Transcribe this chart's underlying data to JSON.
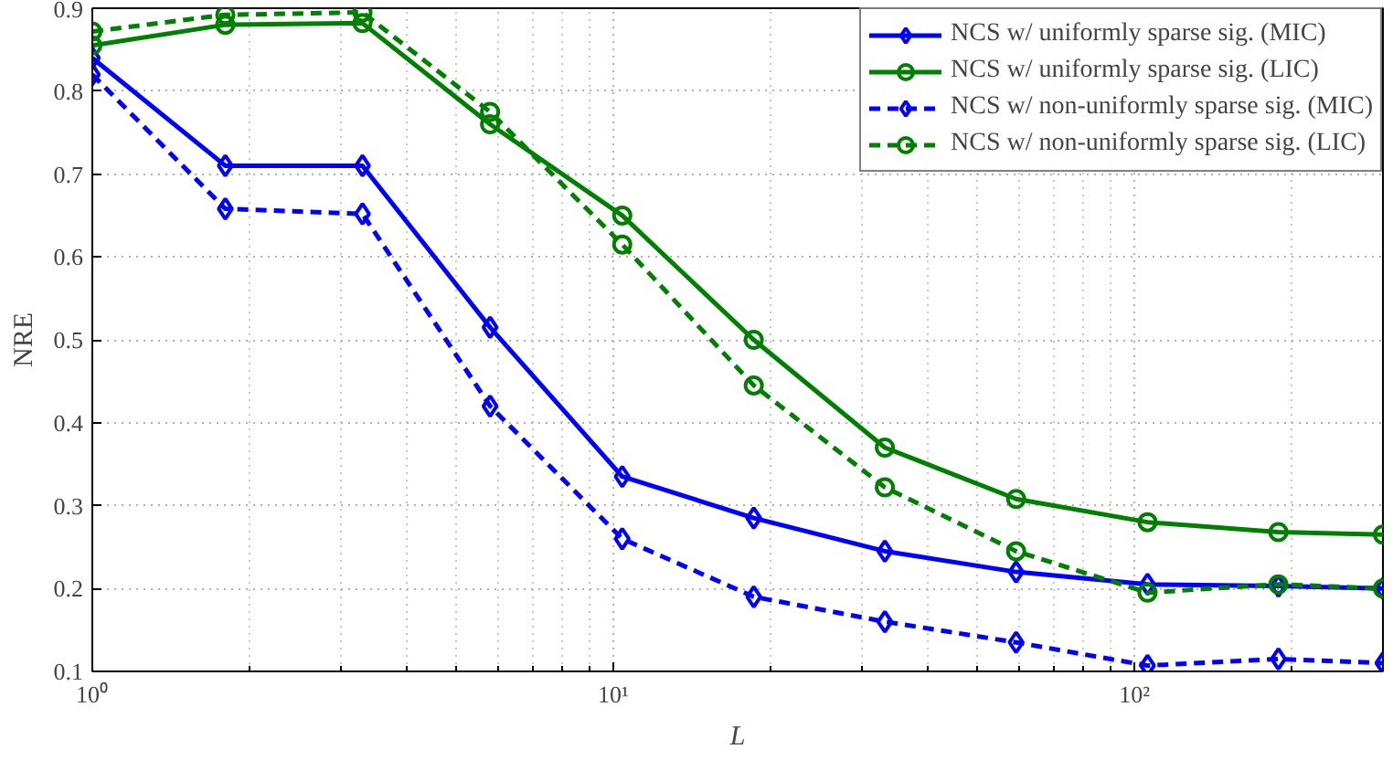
{
  "chart_data": {
    "type": "line",
    "xlabel": "L",
    "ylabel": "NRE",
    "log": "x",
    "grid": true,
    "legend": "top right",
    "x": [
      1,
      1.8,
      3.3,
      5.8,
      10.4,
      18.6,
      33.2,
      59.3,
      106,
      189,
      300
    ],
    "xlim": [
      1,
      300
    ],
    "xticks": [
      {
        "value": 1,
        "label": "10⁰"
      },
      {
        "value": 10,
        "label": "10¹"
      },
      {
        "value": 100,
        "label": "10²"
      }
    ],
    "ylim": [
      0.1,
      0.9
    ],
    "yticks": [
      0.1,
      0.2,
      0.3,
      0.4,
      0.5,
      0.6,
      0.7,
      0.8,
      0.9
    ],
    "series": [
      {
        "name": "NCS w/ uniformly sparse sig. (MIC)",
        "color": "#0000ff",
        "marker": "diamond",
        "line_style": "solid",
        "values": [
          0.84,
          0.71,
          0.71,
          0.515,
          0.335,
          0.285,
          0.245,
          0.22,
          0.205,
          0.203,
          0.2
        ]
      },
      {
        "name": "NCS w/ uniformly sparse sig. (LIC)",
        "color": "#008000",
        "marker": "circle",
        "line_style": "solid",
        "values": [
          0.855,
          0.88,
          0.882,
          0.76,
          0.65,
          0.5,
          0.37,
          0.308,
          0.28,
          0.268,
          0.265
        ]
      },
      {
        "name": "NCS w/ non-uniformly sparse sig. (MIC)",
        "color": "#0000ff",
        "marker": "diamond",
        "line_style": "dashed",
        "values": [
          0.82,
          0.658,
          0.652,
          0.42,
          0.26,
          0.19,
          0.16,
          0.135,
          0.107,
          0.115,
          0.11
        ]
      },
      {
        "name": "NCS w/ non-uniformly sparse sig. (LIC)",
        "color": "#008000",
        "marker": "circle",
        "line_style": "dashed",
        "values": [
          0.872,
          0.892,
          0.895,
          0.775,
          0.615,
          0.445,
          0.322,
          0.245,
          0.195,
          0.205,
          0.2
        ]
      }
    ]
  }
}
